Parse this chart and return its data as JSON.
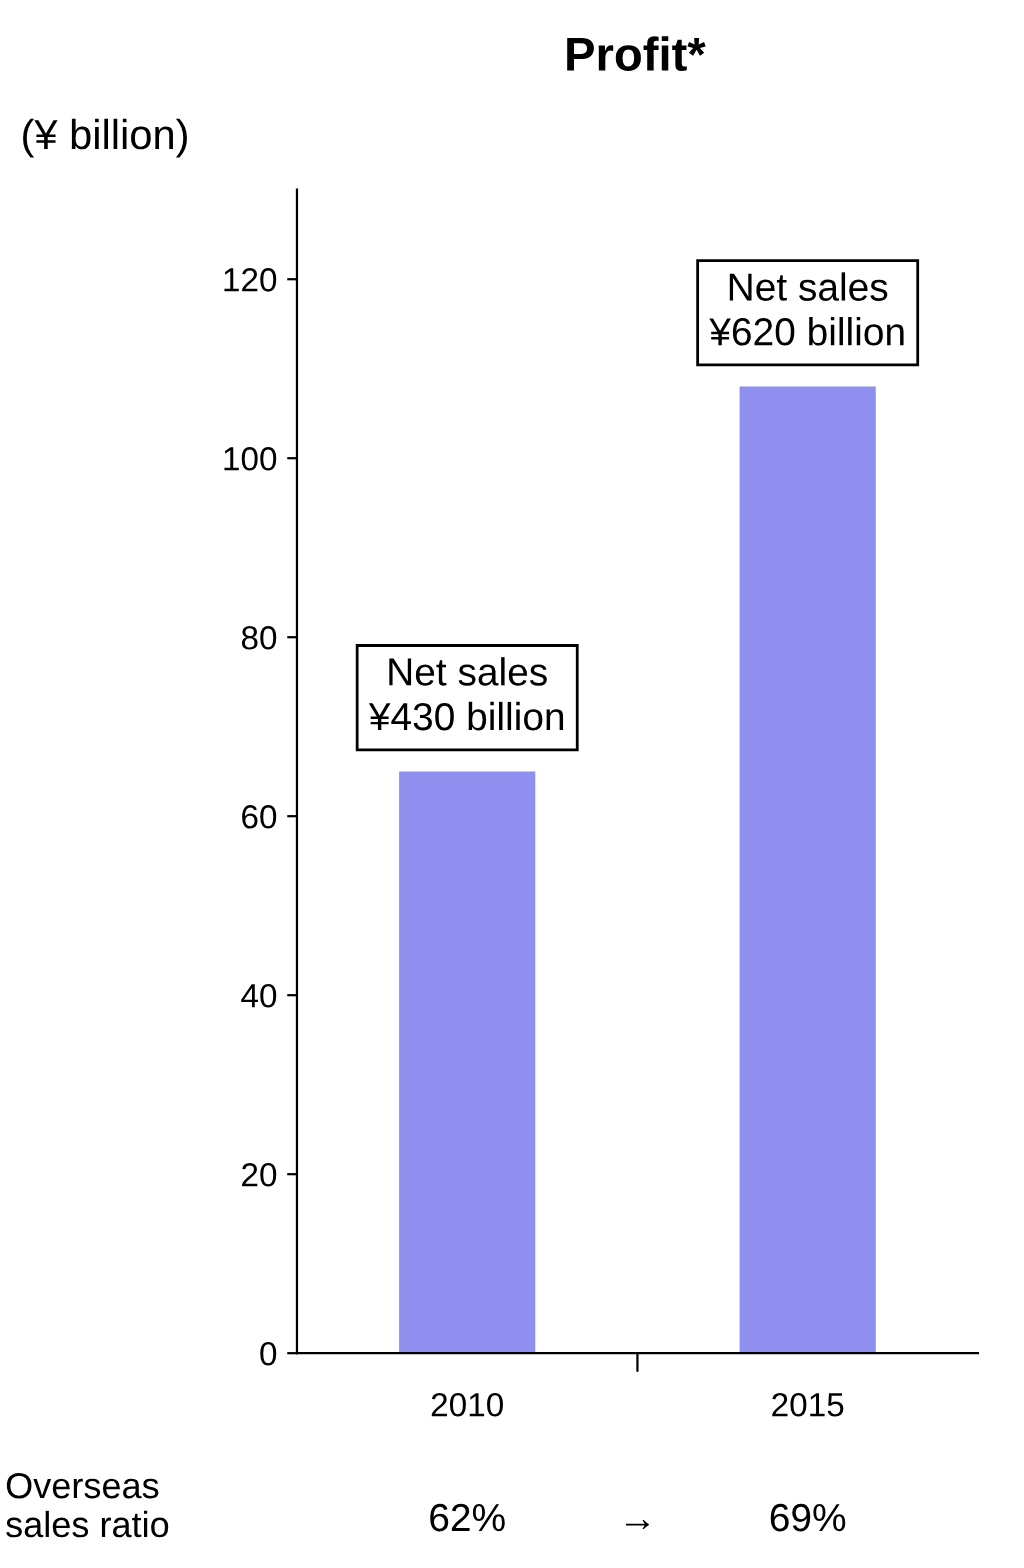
{
  "chart_data": {
    "type": "bar",
    "title": "Profit*",
    "ylabel": "(¥ billion)",
    "categories": [
      "2010",
      "2015"
    ],
    "values": [
      65,
      108
    ],
    "color": "#8f8ff0",
    "ylim": [
      0,
      130
    ],
    "yticks": [
      0,
      20,
      40,
      60,
      80,
      100,
      120
    ],
    "grid": false,
    "legend": false,
    "annotations": [
      {
        "text": "Net sales\n¥430 billion",
        "x": "2010",
        "y": 65
      },
      {
        "text": "Net sales\n¥620 billion",
        "x": "2015",
        "y": 108
      },
      "Overseas\nsales ratio",
      "62%",
      "→",
      "69%"
    ]
  }
}
